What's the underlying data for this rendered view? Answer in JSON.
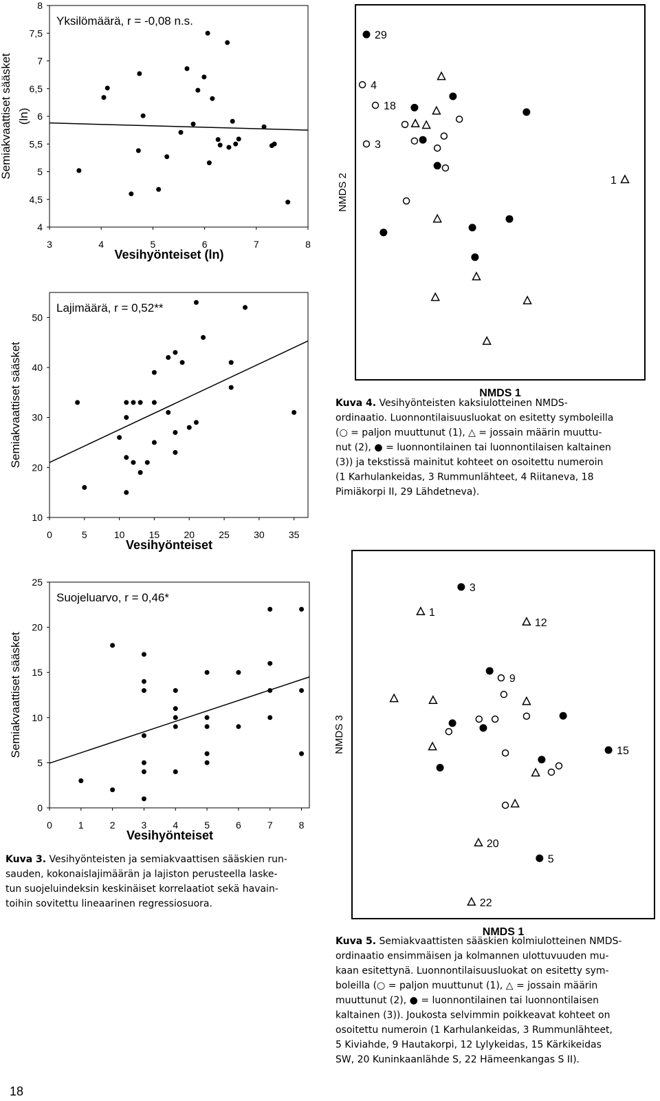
{
  "chart_data": [
    {
      "type": "scatter",
      "title": "Yksilömäärä, r = -0,08 n.s.",
      "xlabel": "Vesihyönteiset (ln)",
      "ylabel": [
        "Semiakvaattiset sääsket",
        "(ln)"
      ],
      "xlim": [
        3,
        8
      ],
      "ylim": [
        4,
        8
      ],
      "xticks": [
        3,
        4,
        5,
        6,
        7,
        8
      ],
      "yticks": [
        4,
        {
          "value": 4.5,
          "label": "4,5"
        },
        5,
        {
          "value": 5.5,
          "label": "5,5"
        },
        6,
        {
          "value": 6.5,
          "label": "6,5"
        },
        7,
        {
          "value": 7.5,
          "label": "7,5"
        },
        8
      ],
      "series": [
        {
          "marker": "circle",
          "color": "#000000",
          "x": [
            3.57,
            4.05,
            4.12,
            4.58,
            4.74,
            4.72,
            4.81,
            5.11,
            5.27,
            5.54,
            5.66,
            5.78,
            5.87,
            5.99,
            6.06,
            6.09,
            6.15,
            6.26,
            6.3,
            6.47,
            6.44,
            6.54,
            6.6,
            6.66,
            7.15,
            7.3,
            7.35,
            7.61
          ],
          "values": [
            5.02,
            6.34,
            6.51,
            4.6,
            6.77,
            5.38,
            6.01,
            4.68,
            5.27,
            5.71,
            6.86,
            5.86,
            6.47,
            6.71,
            7.5,
            5.16,
            6.32,
            5.58,
            5.48,
            5.44,
            7.33,
            5.91,
            5.5,
            5.59,
            5.81,
            5.47,
            5.5,
            4.45
          ]
        }
      ],
      "fit": {
        "x": [
          3,
          8
        ],
        "values": [
          5.88,
          5.75
        ]
      }
    },
    {
      "type": "scatter",
      "title": "Lajimäärä, r = 0,52**",
      "xlabel": "Vesihyönteiset",
      "ylabel": [
        "Semiakvaattiset sääsket"
      ],
      "xlim": [
        0,
        37
      ],
      "ylim": [
        10,
        55
      ],
      "xticks": [
        0,
        5,
        10,
        15,
        20,
        25,
        30,
        35
      ],
      "yticks": [
        10,
        20,
        30,
        40,
        50
      ],
      "series": [
        {
          "marker": "circle",
          "color": "#000000",
          "x": [
            4,
            5,
            10,
            11,
            11,
            11,
            11,
            12,
            12,
            13,
            13,
            14,
            15,
            15,
            15,
            17,
            17,
            18,
            18,
            18,
            19,
            20,
            21,
            21,
            22,
            26,
            26,
            28,
            35
          ],
          "values": [
            33,
            16,
            26,
            33,
            30,
            22,
            15,
            33,
            21,
            33,
            19,
            21,
            33,
            25,
            39,
            31,
            42,
            43,
            27,
            23,
            41,
            28,
            29,
            53,
            46,
            41,
            36,
            52,
            31
          ]
        }
      ],
      "fit": {
        "x": [
          0,
          37
        ],
        "values": [
          21.0,
          45.3
        ]
      }
    },
    {
      "type": "scatter",
      "title": "Suojeluarvo, r = 0,46*",
      "xlabel": "Vesihyönteiset",
      "ylabel": [
        "Semiakvaattiset sääsket"
      ],
      "xlim": [
        0,
        8.25
      ],
      "ylim": [
        0,
        25
      ],
      "xticks": [
        0,
        1,
        2,
        3,
        4,
        5,
        6,
        7,
        8
      ],
      "yticks": [
        0,
        5,
        10,
        15,
        20,
        25
      ],
      "series": [
        {
          "marker": "circle",
          "color": "#000000",
          "x": [
            1,
            2,
            2,
            3,
            3,
            3,
            3,
            3,
            3,
            3,
            4,
            4,
            4,
            4,
            4,
            5,
            5,
            5,
            5,
            5,
            6,
            6,
            7,
            7,
            7,
            7,
            8,
            8,
            8
          ],
          "values": [
            3,
            18,
            2,
            17,
            14,
            13,
            8,
            5,
            4,
            1,
            13,
            11,
            10,
            9,
            4,
            15,
            10,
            9,
            6,
            5,
            15,
            9,
            22,
            16,
            13,
            10,
            22,
            13,
            6
          ]
        }
      ],
      "fit": {
        "x": [
          0,
          8.25
        ],
        "values": [
          4.95,
          14.5
        ]
      }
    },
    {
      "type": "scatter",
      "xlabel": "NMDS 1",
      "ylabel": [
        "NMDS 2"
      ],
      "xlim": [
        0,
        100
      ],
      "ylim": [
        0,
        100
      ],
      "series": [
        {
          "marker": "circle",
          "color": "#000000",
          "x": [
            3.8,
            20.4,
            33.7,
            59.1,
            23.3,
            28.3,
            9.7,
            40.4,
            53.2,
            41.3
          ],
          "values": [
            92.1,
            72.6,
            75.6,
            71.4,
            64.0,
            57.1,
            39.3,
            40.6,
            42.9,
            32.7
          ],
          "labels": [
            "29",
            null,
            null,
            null,
            null,
            null,
            null,
            null,
            null,
            null
          ]
        },
        {
          "marker": "circle-open",
          "color": "#000000",
          "x": [
            2.4,
            6.9,
            3.8,
            17.1,
            20.4,
            30.6,
            28.3,
            35.9,
            31.1,
            17.6
          ],
          "values": [
            78.7,
            73.2,
            62.9,
            68.1,
            63.7,
            65.0,
            61.8,
            69.5,
            56.5,
            47.7
          ],
          "labels": [
            "4",
            "18",
            "3",
            null,
            null,
            null,
            null,
            null,
            null,
            null
          ]
        },
        {
          "marker": "triangle-open",
          "color": "#000000",
          "x": [
            29.7,
            28.0,
            20.7,
            24.5,
            93.1,
            28.3,
            41.8,
            27.6,
            59.4,
            45.4
          ],
          "values": [
            80.9,
            71.7,
            68.3,
            67.9,
            53.4,
            42.9,
            27.5,
            22.0,
            21.1,
            10.3
          ],
          "labels": [
            null,
            null,
            null,
            null,
            "1",
            null,
            null,
            null,
            null,
            null
          ]
        }
      ]
    },
    {
      "type": "scatter",
      "xlabel": "NMDS 1",
      "ylabel": [
        "NMDS 3"
      ],
      "xlim": [
        0,
        100
      ],
      "ylim": [
        0,
        100
      ],
      "series": [
        {
          "marker": "circle",
          "color": "#000000",
          "x": [
            36.1,
            45.5,
            33.2,
            43.4,
            29.1,
            62.7,
            69.8,
            84.8,
            62.0
          ],
          "values": [
            90.1,
            67.3,
            53.1,
            51.8,
            41.0,
            43.2,
            55.1,
            45.8,
            16.4
          ],
          "labels": [
            "3",
            null,
            null,
            null,
            null,
            null,
            null,
            "15",
            "5"
          ]
        },
        {
          "marker": "circle-open",
          "color": "#000000",
          "x": [
            49.3,
            50.2,
            42.0,
            47.3,
            57.7,
            32.0,
            50.7,
            65.9,
            68.4,
            50.7
          ],
          "values": [
            65.4,
            60.9,
            54.2,
            54.2,
            55.0,
            50.8,
            45.0,
            39.8,
            41.5,
            30.8
          ],
          "labels": [
            "9",
            null,
            null,
            null,
            null,
            null,
            null,
            null,
            null,
            null
          ]
        },
        {
          "marker": "triangle-open",
          "color": "#000000",
          "x": [
            22.7,
            57.7,
            13.9,
            26.8,
            57.7,
            26.6,
            60.7,
            53.9,
            41.8,
            39.5
          ],
          "values": [
            83.4,
            80.6,
            59.8,
            59.3,
            59.0,
            46.7,
            39.6,
            31.2,
            20.6,
            4.5
          ],
          "labels": [
            "1",
            "12",
            null,
            null,
            null,
            null,
            null,
            null,
            "20",
            "22"
          ]
        }
      ]
    }
  ],
  "captions": [
    {
      "label": "Kuva 3.",
      "lines": [
        " Vesihyönteisten ja semiakvaattisen sääskien run-",
        "sauden, kokonaislajimäärän ja lajiston perusteella laske-",
        "tun suojeluindeksin keskinäiset korrelaatiot sekä havain-",
        "toihin sovitettu lineaarinen regressiosuora."
      ]
    },
    {
      "label": "Kuva 4.",
      "lines": [
        " Vesihyönteisten kaksiulotteinen NMDS-",
        "ordinaatio. Luonnontilaisuusluokat on esitetty symboleilla",
        "(○ = paljon muuttunut (1), △ = jossain määrin muuttu-",
        "nut (2), ● = luonnontilainen tai luonnontilaisen kaltainen",
        "(3)) ja tekstissä mainitut kohteet on osoitettu numeroin",
        "(1 Karhulankeidas, 3 Rummunlähteet, 4 Riitaneva, 18",
        "Pimiäkorpi II, 29 Lähdetneva)."
      ]
    },
    {
      "label": "Kuva 5.",
      "lines": [
        " Semiakvaattisten sääskien kolmiulotteinen NMDS-",
        "ordinaatio ensimmäisen ja kolmannen ulottuvuuden mu-",
        "kaan esitettynä. Luonnontilaisuusluokat on esitetty sym-",
        "boleilla (○ = paljon muuttunut (1), △ = jossain määrin",
        "muuttunut (2), ● = luonnontilainen tai luonnontilaisen",
        "kaltainen (3)). Joukosta selvimmin poikkeavat kohteet on",
        "osoitettu numeroin (1 Karhulankeidas, 3 Rummunlähteet,",
        "5 Kiviahde, 9 Hautakorpi, 12 Lylykeidas, 15 Kärkikeidas",
        "SW, 20 Kuninkaanlähde S, 22 Hämeenkangas S II)."
      ]
    }
  ],
  "page_number": "18"
}
